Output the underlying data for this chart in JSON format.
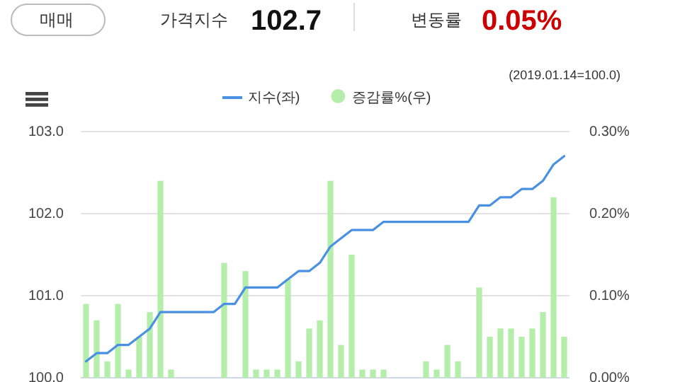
{
  "chart_data": {
    "type": "bar",
    "subtitle": "(2019.01.14=100.0)",
    "annotations": [
      "매매",
      "가격지수",
      "102.7",
      "변동률",
      "0.05%"
    ],
    "categories": [
      null,
      null,
      null,
      null,
      null,
      null,
      null,
      null,
      null,
      null,
      null,
      null,
      null,
      null,
      null,
      null,
      null,
      null,
      null,
      null,
      null,
      null,
      null,
      null,
      null,
      null,
      null,
      null,
      null,
      null,
      null,
      null,
      null,
      null,
      null,
      null,
      null,
      null,
      null,
      null,
      null,
      null,
      null,
      null,
      null,
      null
    ],
    "series": [
      {
        "name": "지수(좌)",
        "type": "line",
        "color": "#4a90e2",
        "values": [
          100.2,
          100.3,
          100.3,
          100.4,
          100.4,
          100.5,
          100.6,
          100.8,
          100.8,
          100.8,
          100.8,
          100.8,
          100.8,
          100.9,
          100.9,
          101.1,
          101.1,
          101.1,
          101.1,
          101.2,
          101.3,
          101.3,
          101.4,
          101.6,
          101.7,
          101.8,
          101.8,
          101.8,
          101.9,
          101.9,
          101.9,
          101.9,
          101.9,
          101.9,
          101.9,
          101.9,
          101.9,
          102.1,
          102.1,
          102.2,
          102.2,
          102.3,
          102.3,
          102.4,
          102.6,
          102.7
        ]
      },
      {
        "name": "증감률%(우)",
        "axis": "y2",
        "color": "#b5edaa",
        "values": [
          0.09,
          0.07,
          0.02,
          0.09,
          0.01,
          0.05,
          0.08,
          0.24,
          0.01,
          0,
          0,
          0,
          0,
          0.14,
          0,
          0.13,
          0.01,
          0.01,
          0.01,
          0.12,
          0.02,
          0.06,
          0.07,
          0.24,
          0.04,
          0.15,
          0.01,
          0.01,
          0.01,
          0,
          0,
          0,
          0.02,
          0.01,
          0.04,
          0.02,
          0,
          0.11,
          0.05,
          0.06,
          0.06,
          0.05,
          0.06,
          0.08,
          0.22,
          0.05
        ]
      }
    ],
    "ylim": [
      100,
      103
    ],
    "yticks": [
      {
        "value": 100,
        "label": "100.0"
      },
      {
        "value": 101,
        "label": "101.0"
      },
      {
        "value": 102,
        "label": "102.0"
      },
      {
        "value": 103,
        "label": "103.0"
      }
    ],
    "y2lim": [
      0,
      0.3
    ],
    "y2ticks": [
      {
        "value": 0,
        "label": "0.00%"
      },
      {
        "value": 0.1,
        "label": "0.10%"
      },
      {
        "value": 0.2,
        "label": "0.20%"
      },
      {
        "value": 0.3,
        "label": "0.30%"
      }
    ],
    "grid": "y",
    "legend": "top"
  }
}
